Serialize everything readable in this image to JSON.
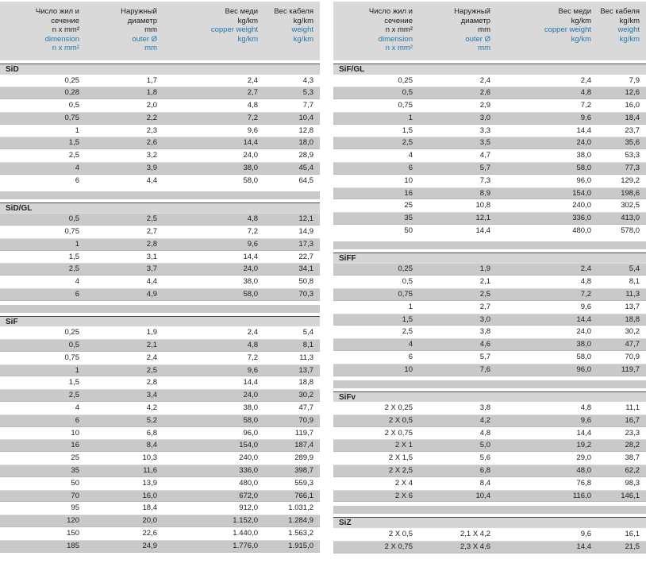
{
  "colors": {
    "header_bg": "#d9d9d9",
    "row_gray": "#c9c9c9",
    "sep_gray": "#c9c9c9",
    "title_bg": "#d5d5d5",
    "rule_dark": "#4a4a4a",
    "accent_blue": "#2178ad",
    "text": "#1c1c1c"
  },
  "table_header": {
    "columns": [
      {
        "black": [
          "Число жил и",
          "сечение",
          "n x mm²"
        ],
        "blue": [
          "dimension",
          "n x mm²"
        ]
      },
      {
        "black": [
          "Наружный",
          "диаметр",
          "mm"
        ],
        "blue": [
          "outer Ø",
          "mm"
        ]
      },
      {
        "black": [
          "Вес меди",
          "kg/km"
        ],
        "blue": [
          "copper weight",
          "kg/km"
        ]
      },
      {
        "black": [
          "Вес кабеля",
          "kg/km"
        ],
        "blue": [
          "weight",
          "kg/km"
        ]
      }
    ]
  },
  "columns": [
    {
      "side": "left",
      "sections": [
        {
          "title": "SiD",
          "first_row_dark": false,
          "rows": [
            [
              "0,25",
              "1,7",
              "2,4",
              "4,3"
            ],
            [
              "0,28",
              "1,8",
              "2,7",
              "5,3"
            ],
            [
              "0,5",
              "2,0",
              "4,8",
              "7,7"
            ],
            [
              "0,75",
              "2,2",
              "7,2",
              "10,4"
            ],
            [
              "1",
              "2,3",
              "9,6",
              "12,8"
            ],
            [
              "1,5",
              "2,6",
              "14,4",
              "18,0"
            ],
            [
              "2,5",
              "3,2",
              "24,0",
              "28,9"
            ],
            [
              "4",
              "3,9",
              "38,0",
              "45,4"
            ],
            [
              "6",
              "4,4",
              "58,0",
              "64,5"
            ]
          ]
        },
        {
          "title": "SiD/GL",
          "first_row_dark": true,
          "rows": [
            [
              "0,5",
              "2,5",
              "4,8",
              "12,1"
            ],
            [
              "0,75",
              "2,7",
              "7,2",
              "14,9"
            ],
            [
              "1",
              "2,8",
              "9,6",
              "17,3"
            ],
            [
              "1,5",
              "3,1",
              "14,4",
              "22,7"
            ],
            [
              "2,5",
              "3,7",
              "24,0",
              "34,1"
            ],
            [
              "4",
              "4,4",
              "38,0",
              "50,8"
            ],
            [
              "6",
              "4,9",
              "58,0",
              "70,3"
            ]
          ]
        },
        {
          "title": "SiF",
          "first_row_dark": false,
          "rows": [
            [
              "0,25",
              "1,9",
              "2,4",
              "5,4"
            ],
            [
              "0,5",
              "2,1",
              "4,8",
              "8,1"
            ],
            [
              "0,75",
              "2,4",
              "7,2",
              "11,3"
            ],
            [
              "1",
              "2,5",
              "9,6",
              "13,7"
            ],
            [
              "1,5",
              "2,8",
              "14,4",
              "18,8"
            ],
            [
              "2,5",
              "3,4",
              "24,0",
              "30,2"
            ],
            [
              "4",
              "4,2",
              "38,0",
              "47,7"
            ],
            [
              "6",
              "5,2",
              "58,0",
              "70,9"
            ],
            [
              "10",
              "6,8",
              "96,0",
              "119,7"
            ],
            [
              "16",
              "8,4",
              "154,0",
              "187,4"
            ],
            [
              "25",
              "10,3",
              "240,0",
              "289,9"
            ],
            [
              "35",
              "11,6",
              "336,0",
              "398,7"
            ],
            [
              "50",
              "13,9",
              "480,0",
              "559,3"
            ],
            [
              "70",
              "16,0",
              "672,0",
              "766,1"
            ],
            [
              "95",
              "18,4",
              "912,0",
              "1.031,2"
            ],
            [
              "120",
              "20,0",
              "1.152,0",
              "1.284,9"
            ],
            [
              "150",
              "22,6",
              "1.440,0",
              "1.563,2"
            ],
            [
              "185",
              "24,9",
              "1.776,0",
              "1.915,0"
            ]
          ]
        }
      ]
    },
    {
      "side": "right",
      "sections": [
        {
          "title": "SiF/GL",
          "first_row_dark": false,
          "rows": [
            [
              "0,25",
              "2,4",
              "2,4",
              "7,9"
            ],
            [
              "0,5",
              "2,6",
              "4,8",
              "12,6"
            ],
            [
              "0,75",
              "2,9",
              "7,2",
              "16,0"
            ],
            [
              "1",
              "3,0",
              "9,6",
              "18,4"
            ],
            [
              "1,5",
              "3,3",
              "14,4",
              "23,7"
            ],
            [
              "2,5",
              "3,5",
              "24,0",
              "35,6"
            ],
            [
              "4",
              "4,7",
              "38,0",
              "53,3"
            ],
            [
              "6",
              "5,7",
              "58,0",
              "77,3"
            ],
            [
              "10",
              "7,3",
              "96,0",
              "129,2"
            ],
            [
              "16",
              "8,9",
              "154,0",
              "198,6"
            ],
            [
              "25",
              "10,8",
              "240,0",
              "302,5"
            ],
            [
              "35",
              "12,1",
              "336,0",
              "413,0"
            ],
            [
              "50",
              "14,4",
              "480,0",
              "578,0"
            ]
          ]
        },
        {
          "title": "SiFF",
          "first_row_dark": true,
          "rows": [
            [
              "0,25",
              "1,9",
              "2,4",
              "5,4"
            ],
            [
              "0,5",
              "2,1",
              "4,8",
              "8,1"
            ],
            [
              "0,75",
              "2,5",
              "7,2",
              "11,3"
            ],
            [
              "1",
              "2,7",
              "9,6",
              "13,7"
            ],
            [
              "1,5",
              "3,0",
              "14,4",
              "18,8"
            ],
            [
              "2,5",
              "3,8",
              "24,0",
              "30,2"
            ],
            [
              "4",
              "4,6",
              "38,0",
              "47,7"
            ],
            [
              "6",
              "5,7",
              "58,0",
              "70,9"
            ],
            [
              "10",
              "7,6",
              "96,0",
              "119,7"
            ]
          ]
        },
        {
          "title": "SiFv",
          "first_row_dark": false,
          "rows": [
            [
              "2 X 0,25",
              "3,8",
              "4,8",
              "11,1"
            ],
            [
              "2 X 0,5",
              "4,2",
              "9,6",
              "16,7"
            ],
            [
              "2 X 0,75",
              "4,8",
              "14,4",
              "23,3"
            ],
            [
              "2 X 1",
              "5,0",
              "19,2",
              "28,2"
            ],
            [
              "2 X 1,5",
              "5,6",
              "29,0",
              "38,7"
            ],
            [
              "2 X 2,5",
              "6,8",
              "48,0",
              "62,2"
            ],
            [
              "2 X 4",
              "8,4",
              "76,8",
              "98,3"
            ],
            [
              "2 X 6",
              "10,4",
              "116,0",
              "146,1"
            ]
          ]
        },
        {
          "title": "SiZ",
          "first_row_dark": false,
          "rows": [
            [
              "2 X 0,5",
              "2,1 X 4,2",
              "9,6",
              "16,1"
            ],
            [
              "2 X 0,75",
              "2,3 X 4,6",
              "14,4",
              "21,5"
            ]
          ]
        }
      ]
    }
  ]
}
